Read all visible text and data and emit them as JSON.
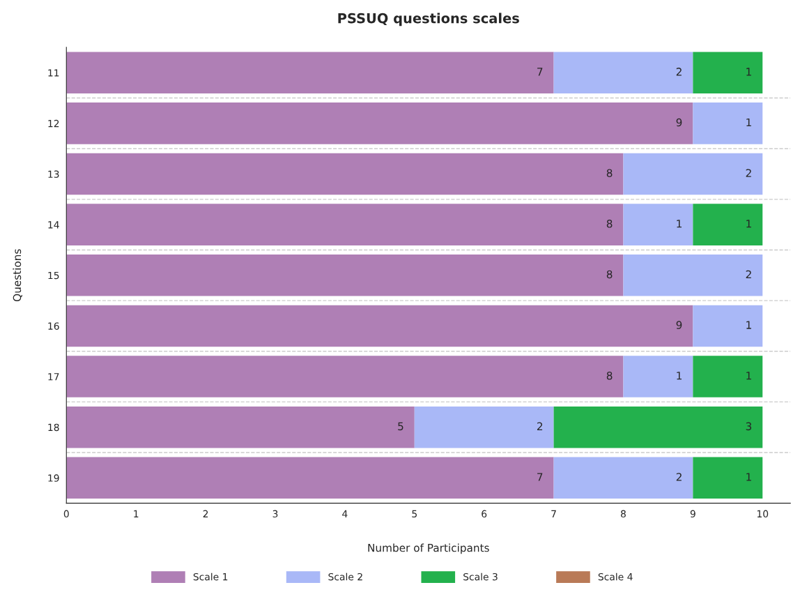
{
  "chart_data": {
    "type": "bar",
    "orientation": "horizontal",
    "stacked": true,
    "title": "PSSUQ questions scales",
    "xlabel": "Number of Participants",
    "ylabel": "Questions",
    "categories": [
      "11",
      "12",
      "13",
      "14",
      "15",
      "16",
      "17",
      "18",
      "19"
    ],
    "series": [
      {
        "name": "Scale 1",
        "color": "#af7fb5",
        "values": [
          7,
          9,
          8,
          8,
          8,
          9,
          8,
          5,
          7
        ]
      },
      {
        "name": "Scale 2",
        "color": "#a9b8f7",
        "values": [
          2,
          1,
          2,
          1,
          2,
          1,
          1,
          2,
          2
        ]
      },
      {
        "name": "Scale 3",
        "color": "#23b14d",
        "values": [
          1,
          null,
          null,
          1,
          null,
          null,
          1,
          3,
          1
        ]
      },
      {
        "name": "Scale 4",
        "color": "#b97a57",
        "values": [
          null,
          null,
          null,
          null,
          null,
          null,
          null,
          null,
          null
        ]
      }
    ],
    "xlim": [
      0,
      10.4
    ],
    "xticks": [
      0,
      1,
      2,
      3,
      4,
      5,
      6,
      7,
      8,
      9,
      10
    ],
    "data_labels": true,
    "grid": "y",
    "legend": "bottom"
  }
}
